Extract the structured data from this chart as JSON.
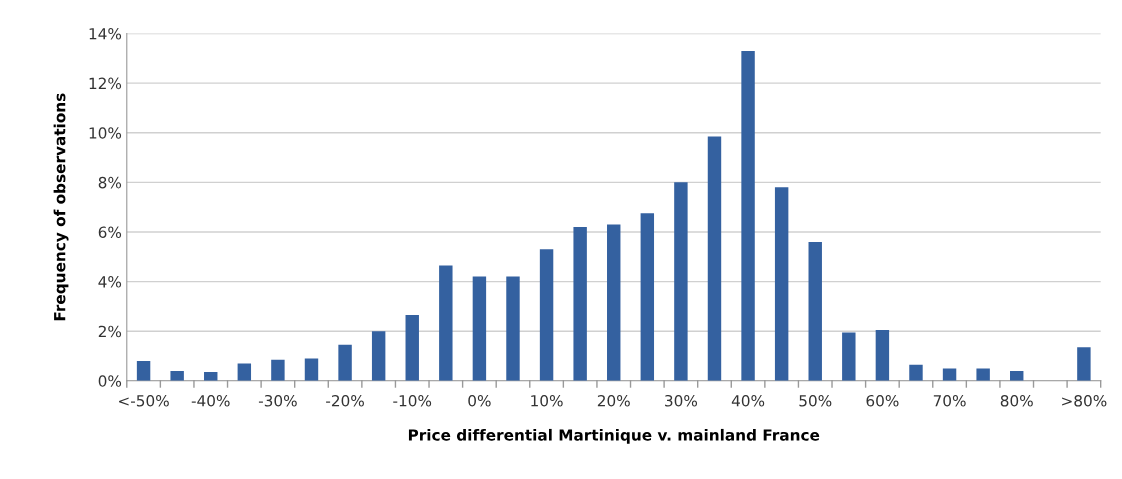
{
  "chart_data": {
    "type": "bar",
    "xlabel": "Price differential Martinique v. mainland France",
    "ylabel": "Frequency of observations",
    "categories": [
      "<-50%",
      null,
      "-40%",
      null,
      "-30%",
      null,
      "-20%",
      null,
      "-10%",
      null,
      "0%",
      null,
      "10%",
      null,
      "20%",
      null,
      "30%",
      null,
      "40%",
      null,
      "50%",
      null,
      "60%",
      null,
      "70%",
      null,
      "80%",
      null,
      ">80%"
    ],
    "values": [
      0.8,
      0.4,
      0.35,
      0.7,
      0.85,
      0.9,
      1.45,
      2.0,
      2.65,
      4.65,
      4.2,
      4.2,
      5.3,
      6.2,
      6.3,
      6.75,
      8.0,
      9.85,
      13.3,
      7.8,
      5.6,
      1.95,
      2.05,
      0.65,
      0.5,
      0.5,
      0.4,
      null,
      1.35
    ],
    "color": "#3461a0",
    "ylim": [
      0,
      14
    ],
    "yticks": [
      {
        "value": 0,
        "label": "0%"
      },
      {
        "value": 2,
        "label": "2%"
      },
      {
        "value": 4,
        "label": "4%"
      },
      {
        "value": 6,
        "label": "6%"
      },
      {
        "value": 8,
        "label": "8%"
      },
      {
        "value": 10,
        "label": "10%"
      },
      {
        "value": 12,
        "label": "12%"
      },
      {
        "value": 14,
        "label": "14%"
      }
    ],
    "grid": "y"
  }
}
